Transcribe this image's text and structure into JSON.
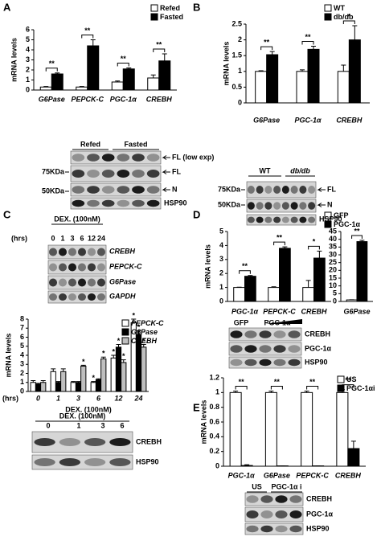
{
  "chart_data": [
    {
      "type": "bar",
      "panel": "A",
      "ylabel": "mRNA levels",
      "categories": [
        "G6Pase",
        "PEPCK-C",
        "PGC-1α",
        "CREBH"
      ],
      "series": [
        {
          "name": "Refed",
          "color": "#ffffff",
          "values": [
            0.3,
            0.3,
            0.8,
            1.2
          ],
          "errors": [
            0.05,
            0.05,
            0.1,
            0.3
          ]
        },
        {
          "name": "Fasted",
          "color": "#000000",
          "values": [
            1.6,
            4.4,
            2.1,
            2.9
          ],
          "errors": [
            0.1,
            0.6,
            0.1,
            0.7
          ]
        }
      ],
      "significance": [
        "**",
        "**",
        "**",
        "**"
      ],
      "ylim": [
        0,
        6
      ],
      "yticks": [
        0,
        1,
        2,
        3,
        4,
        5,
        6
      ],
      "legend": "top-right"
    },
    {
      "type": "bar",
      "panel": "B",
      "ylabel": "mRNA levels",
      "categories": [
        "G6Pase",
        "PGC-1α",
        "CREBH"
      ],
      "series": [
        {
          "name": "WT",
          "color": "#ffffff",
          "values": [
            1,
            1,
            1
          ],
          "errors": [
            0.02,
            0.05,
            0.2
          ]
        },
        {
          "name": "db/db",
          "color": "#000000",
          "values": [
            1.53,
            1.7,
            2.0
          ],
          "errors": [
            0.1,
            0.1,
            0.45
          ]
        }
      ],
      "significance": [
        "**",
        "**",
        "*"
      ],
      "ylim": [
        0,
        2.5
      ],
      "yticks": [
        0,
        0.5,
        1,
        1.5,
        2,
        2.5
      ],
      "legend": "top-right"
    },
    {
      "type": "bar",
      "panel": "C",
      "ylabel": "mRNA levels",
      "xlabel": "DEX.  (100nM)",
      "x_unit_label": "(hrs)",
      "categories": [
        "0",
        "1",
        "3",
        "6",
        "12",
        "24"
      ],
      "series": [
        {
          "name": "PEPCK-C",
          "color": "#ffffff",
          "values": [
            1,
            2.2,
            1,
            1,
            3.7,
            7.6
          ],
          "errors": [
            0.2,
            0.3,
            0.1,
            0.1,
            0.3,
            0.4
          ],
          "significance": [
            null,
            null,
            null,
            "*",
            "*",
            "*"
          ]
        },
        {
          "name": "G6Pase",
          "color": "#000000",
          "values": [
            0.8,
            1,
            1,
            1.3,
            4.9,
            6.3
          ],
          "errors": [
            0.1,
            0.1,
            0.1,
            0.1,
            0.3,
            0.4
          ],
          "significance": [
            null,
            null,
            null,
            null,
            "*",
            "*"
          ]
        },
        {
          "name": "CREBH",
          "color": "#bfbfbf",
          "values": [
            1,
            2.2,
            2.8,
            3.6,
            3.2,
            4.9
          ],
          "errors": [
            0.2,
            0.3,
            0.1,
            0.2,
            0.3,
            0.3
          ],
          "significance": [
            null,
            null,
            "*",
            "*",
            "*",
            "*"
          ]
        }
      ],
      "ylim": [
        0,
        8
      ],
      "yticks": [
        0,
        1,
        2,
        3,
        4,
        5,
        6,
        7,
        8
      ],
      "legend": "top-right"
    },
    {
      "type": "bar",
      "panel": "D",
      "ylabel": "mRNA levels",
      "categories": [
        "PGC-1α",
        "PEPCK-C",
        "CREBH"
      ],
      "series": [
        {
          "name": "GFP",
          "color": "#ffffff",
          "values": [
            1,
            1,
            1
          ],
          "errors": [
            0.02,
            0.05,
            0.5
          ]
        },
        {
          "name": "PGC-1α",
          "color": "#000000",
          "values": [
            1.8,
            3.8,
            3.1
          ],
          "errors": [
            0.05,
            0.1,
            0.5
          ]
        }
      ],
      "significance": [
        "**",
        "**",
        "*"
      ],
      "ylim": [
        0,
        5
      ],
      "yticks": [
        0,
        1,
        2,
        3,
        4,
        5
      ],
      "legend": "top-right"
    },
    {
      "type": "bar",
      "categories": [
        "G6Pase"
      ],
      "series": [
        {
          "name": "GFP",
          "color": "#ffffff",
          "values": [
            1
          ],
          "errors": [
            0.1
          ]
        },
        {
          "name": "PGC-1α",
          "color": "#000000",
          "values": [
            38.5
          ],
          "errors": [
            0.8
          ]
        }
      ],
      "significance": [
        "**"
      ],
      "ylim": [
        0,
        45
      ],
      "yticks": [
        0,
        5,
        10,
        15,
        20,
        25,
        30,
        35,
        40,
        45
      ]
    },
    {
      "type": "bar",
      "panel": "E",
      "ylabel": "mRNA levels",
      "categories": [
        "PGC-1α",
        "G6Pase",
        "PEPCK-C",
        "CREBH"
      ],
      "series": [
        {
          "name": "US",
          "color": "#ffffff",
          "values": [
            1,
            1,
            1,
            1
          ],
          "errors": [
            0.02,
            0.02,
            0.02,
            0.04
          ]
        },
        {
          "name": "PGC-1αi",
          "color": "#000000",
          "values": [
            0.01,
            0.005,
            0.005,
            0.24
          ],
          "errors": [
            0.01,
            0,
            0,
            0.1
          ]
        }
      ],
      "significance": [
        "**",
        "**",
        "**",
        "**"
      ],
      "ylim": [
        0,
        1.2
      ],
      "yticks": [
        0,
        0.2,
        0.4,
        0.6,
        0.8,
        1,
        1.2
      ],
      "legend": "top-right"
    }
  ],
  "blots": [
    {
      "groups": [
        "Refed",
        "Fasted"
      ],
      "rows": [
        "FL (low exp)",
        "FL",
        "N",
        "HSP90"
      ],
      "markers": [
        "75KDa",
        "50KDa"
      ]
    },
    {
      "groups": [
        "WT",
        "db/db"
      ],
      "rows": [
        "FL",
        "N",
        "HSP90"
      ],
      "markers": [
        "75KDa",
        "50KDa"
      ]
    },
    {
      "title": "DEX.  (100nM)",
      "unit": "(hrs)",
      "lanes": [
        "0",
        "1",
        "3",
        "6",
        "12",
        "24"
      ],
      "rows": [
        "CREBH",
        "PEPCK-C",
        "G6Pase",
        "GAPDH"
      ]
    },
    {
      "title": "DEX.  (100nM)",
      "lanes": [
        "0",
        "1",
        "3",
        "6"
      ],
      "rows": [
        "CREBH",
        "HSP90"
      ]
    },
    {
      "groups": [
        "GFP",
        "PGC-1α"
      ],
      "rows": [
        "CREBH",
        "PGC-1α",
        "HSP90"
      ]
    },
    {
      "groups": [
        "US",
        "PGC-1α i"
      ],
      "rows": [
        "CREBH",
        "PGC-1α",
        "HSP90"
      ]
    }
  ]
}
